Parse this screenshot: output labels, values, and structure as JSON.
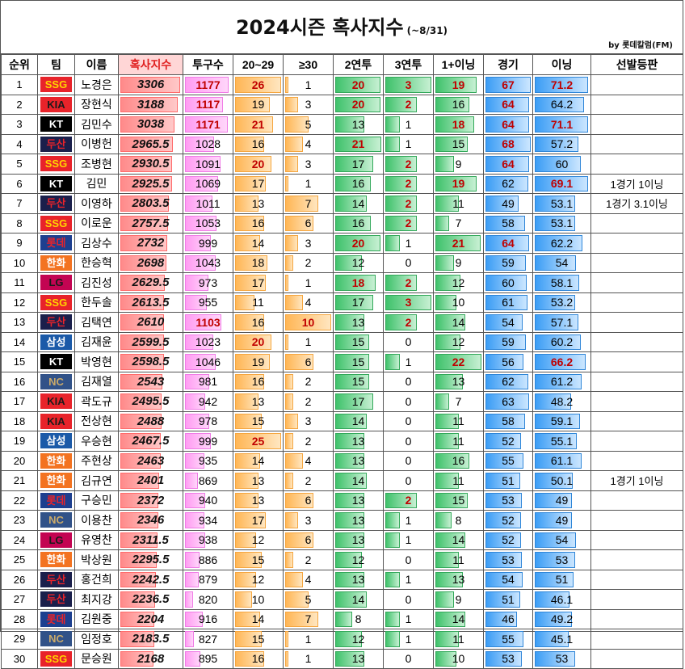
{
  "title": "2024시즌 혹사지수",
  "subtitle": "(~8/31)",
  "byline": "by 롯데칼럼(FM)",
  "columns": [
    "순위",
    "팀",
    "이름",
    "혹사지수",
    "투구수",
    "20~29",
    "≥30",
    "2연투",
    "3연투",
    "1+이닝",
    "경기",
    "이닝",
    "선발등판"
  ],
  "team_colors": {
    "SSG": {
      "bg": "#e8232a",
      "fg": "#ffd400"
    },
    "KIA": {
      "bg": "#e8232a",
      "fg": "#1a1a1a"
    },
    "KT": {
      "bg": "#000000",
      "fg": "#ffffff"
    },
    "두산": {
      "bg": "#1a1f4b",
      "fg": "#e8232a"
    },
    "롯데": {
      "bg": "#1d3f8f",
      "fg": "#e8232a"
    },
    "한화": {
      "bg": "#f37321",
      "fg": "#ffffff"
    },
    "LG": {
      "bg": "#c30452",
      "fg": "#1a1a1a"
    },
    "삼성": {
      "bg": "#1b5aa8",
      "fg": "#ffffff"
    },
    "NC": {
      "bg": "#315288",
      "fg": "#c8a96a"
    }
  },
  "rows": [
    {
      "rank": "1",
      "team": "SSG",
      "name": "노경은",
      "index": "3306",
      "pitches": "1177",
      "p20": "26",
      "p30": "1",
      "d2": "20",
      "d3": "3",
      "inn1": "19",
      "games": "67",
      "innings": "71.2",
      "note": ""
    },
    {
      "rank": "2",
      "team": "KIA",
      "name": "장현식",
      "index": "3188",
      "pitches": "1117",
      "p20": "19",
      "p30": "3",
      "d2": "20",
      "d3": "2",
      "inn1": "16",
      "games": "64",
      "innings": "64.2",
      "note": ""
    },
    {
      "rank": "3",
      "team": "KT",
      "name": "김민수",
      "index": "3038",
      "pitches": "1171",
      "p20": "21",
      "p30": "5",
      "d2": "13",
      "d3": "1",
      "inn1": "18",
      "games": "64",
      "innings": "71.1",
      "note": ""
    },
    {
      "rank": "4",
      "team": "두산",
      "name": "이병헌",
      "index": "2965.5",
      "pitches": "1028",
      "p20": "16",
      "p30": "4",
      "d2": "21",
      "d3": "1",
      "inn1": "15",
      "games": "68",
      "innings": "57.2",
      "note": ""
    },
    {
      "rank": "5",
      "team": "SSG",
      "name": "조병현",
      "index": "2930.5",
      "pitches": "1091",
      "p20": "20",
      "p30": "3",
      "d2": "17",
      "d3": "2",
      "inn1": "9",
      "games": "64",
      "innings": "60",
      "note": ""
    },
    {
      "rank": "6",
      "team": "KT",
      "name": "김민",
      "index": "2925.5",
      "pitches": "1069",
      "p20": "17",
      "p30": "1",
      "d2": "16",
      "d3": "2",
      "inn1": "19",
      "games": "62",
      "innings": "69.1",
      "note": "1경기 1이닝"
    },
    {
      "rank": "7",
      "team": "두산",
      "name": "이영하",
      "index": "2803.5",
      "pitches": "1011",
      "p20": "13",
      "p30": "7",
      "d2": "14",
      "d3": "2",
      "inn1": "11",
      "games": "49",
      "innings": "53.1",
      "note": "1경기 3.1이닝"
    },
    {
      "rank": "8",
      "team": "SSG",
      "name": "이로운",
      "index": "2757.5",
      "pitches": "1053",
      "p20": "16",
      "p30": "6",
      "d2": "16",
      "d3": "2",
      "inn1": "7",
      "games": "58",
      "innings": "53.1",
      "note": ""
    },
    {
      "rank": "9",
      "team": "롯데",
      "name": "김상수",
      "index": "2732",
      "pitches": "999",
      "p20": "14",
      "p30": "3",
      "d2": "20",
      "d3": "1",
      "inn1": "21",
      "games": "64",
      "innings": "62.2",
      "note": ""
    },
    {
      "rank": "10",
      "team": "한화",
      "name": "한승혁",
      "index": "2698",
      "pitches": "1043",
      "p20": "18",
      "p30": "2",
      "d2": "12",
      "d3": "0",
      "inn1": "9",
      "games": "59",
      "innings": "54",
      "note": ""
    },
    {
      "rank": "11",
      "team": "LG",
      "name": "김진성",
      "index": "2629.5",
      "pitches": "973",
      "p20": "17",
      "p30": "1",
      "d2": "18",
      "d3": "2",
      "inn1": "12",
      "games": "60",
      "innings": "58.1",
      "note": ""
    },
    {
      "rank": "12",
      "team": "SSG",
      "name": "한두솔",
      "index": "2613.5",
      "pitches": "955",
      "p20": "11",
      "p30": "4",
      "d2": "17",
      "d3": "3",
      "inn1": "10",
      "games": "61",
      "innings": "53.2",
      "note": ""
    },
    {
      "rank": "13",
      "team": "두산",
      "name": "김택연",
      "index": "2610",
      "pitches": "1103",
      "p20": "16",
      "p30": "10",
      "d2": "13",
      "d3": "2",
      "inn1": "14",
      "games": "54",
      "innings": "57.1",
      "note": ""
    },
    {
      "rank": "14",
      "team": "삼성",
      "name": "김재윤",
      "index": "2599.5",
      "pitches": "1023",
      "p20": "20",
      "p30": "1",
      "d2": "15",
      "d3": "0",
      "inn1": "12",
      "games": "59",
      "innings": "60.2",
      "note": ""
    },
    {
      "rank": "15",
      "team": "KT",
      "name": "박영현",
      "index": "2598.5",
      "pitches": "1046",
      "p20": "19",
      "p30": "6",
      "d2": "15",
      "d3": "1",
      "inn1": "22",
      "games": "56",
      "innings": "66.2",
      "note": ""
    },
    {
      "rank": "16",
      "team": "NC",
      "name": "김재열",
      "index": "2543",
      "pitches": "981",
      "p20": "16",
      "p30": "2",
      "d2": "15",
      "d3": "0",
      "inn1": "13",
      "games": "62",
      "innings": "61.2",
      "note": ""
    },
    {
      "rank": "17",
      "team": "KIA",
      "name": "곽도규",
      "index": "2495.5",
      "pitches": "942",
      "p20": "13",
      "p30": "2",
      "d2": "17",
      "d3": "0",
      "inn1": "7",
      "games": "63",
      "innings": "48.2",
      "note": ""
    },
    {
      "rank": "18",
      "team": "KIA",
      "name": "전상현",
      "index": "2488",
      "pitches": "978",
      "p20": "15",
      "p30": "3",
      "d2": "14",
      "d3": "0",
      "inn1": "11",
      "games": "58",
      "innings": "59.1",
      "note": ""
    },
    {
      "rank": "19",
      "team": "삼성",
      "name": "우승현",
      "index": "2467.5",
      "pitches": "999",
      "p20": "25",
      "p30": "2",
      "d2": "13",
      "d3": "0",
      "inn1": "11",
      "games": "52",
      "innings": "55.1",
      "note": ""
    },
    {
      "rank": "20",
      "team": "한화",
      "name": "주현상",
      "index": "2463",
      "pitches": "935",
      "p20": "14",
      "p30": "4",
      "d2": "13",
      "d3": "0",
      "inn1": "16",
      "games": "55",
      "innings": "61.1",
      "note": ""
    },
    {
      "rank": "21",
      "team": "한화",
      "name": "김규연",
      "index": "2401",
      "pitches": "869",
      "p20": "13",
      "p30": "2",
      "d2": "14",
      "d3": "0",
      "inn1": "11",
      "games": "51",
      "innings": "50.1",
      "note": "1경기 1이닝"
    },
    {
      "rank": "22",
      "team": "롯데",
      "name": "구승민",
      "index": "2372",
      "pitches": "940",
      "p20": "13",
      "p30": "6",
      "d2": "13",
      "d3": "2",
      "inn1": "15",
      "games": "53",
      "innings": "49",
      "note": ""
    },
    {
      "rank": "23",
      "team": "NC",
      "name": "이용찬",
      "index": "2346",
      "pitches": "934",
      "p20": "17",
      "p30": "3",
      "d2": "13",
      "d3": "1",
      "inn1": "8",
      "games": "52",
      "innings": "49",
      "note": ""
    },
    {
      "rank": "24",
      "team": "LG",
      "name": "유영찬",
      "index": "2311.5",
      "pitches": "938",
      "p20": "12",
      "p30": "6",
      "d2": "13",
      "d3": "1",
      "inn1": "14",
      "games": "52",
      "innings": "54",
      "note": ""
    },
    {
      "rank": "25",
      "team": "한화",
      "name": "박상원",
      "index": "2295.5",
      "pitches": "886",
      "p20": "15",
      "p30": "2",
      "d2": "12",
      "d3": "0",
      "inn1": "11",
      "games": "53",
      "innings": "53",
      "note": ""
    },
    {
      "rank": "26",
      "team": "두산",
      "name": "홍건희",
      "index": "2242.5",
      "pitches": "879",
      "p20": "12",
      "p30": "4",
      "d2": "13",
      "d3": "1",
      "inn1": "13",
      "games": "54",
      "innings": "51",
      "note": ""
    },
    {
      "rank": "27",
      "team": "두산",
      "name": "최지강",
      "index": "2236.5",
      "pitches": "820",
      "p20": "10",
      "p30": "5",
      "d2": "14",
      "d3": "0",
      "inn1": "9",
      "games": "51",
      "innings": "46.1",
      "note": ""
    },
    {
      "rank": "28",
      "team": "롯데",
      "name": "김원중",
      "index": "2204",
      "pitches": "916",
      "p20": "14",
      "p30": "7",
      "d2": "8",
      "d3": "1",
      "inn1": "14",
      "games": "46",
      "innings": "49.2",
      "note": ""
    },
    {
      "rank": "29",
      "team": "NC",
      "name": "임정호",
      "index": "2183.5",
      "pitches": "827",
      "p20": "15",
      "p30": "1",
      "d2": "12",
      "d3": "1",
      "inn1": "11",
      "games": "55",
      "innings": "45.1",
      "note": ""
    },
    {
      "rank": "30",
      "team": "SSG",
      "name": "문승원",
      "index": "2168",
      "pitches": "895",
      "p20": "16",
      "p30": "1",
      "d2": "13",
      "d3": "0",
      "inn1": "10",
      "games": "53",
      "innings": "53",
      "note": ""
    }
  ]
}
